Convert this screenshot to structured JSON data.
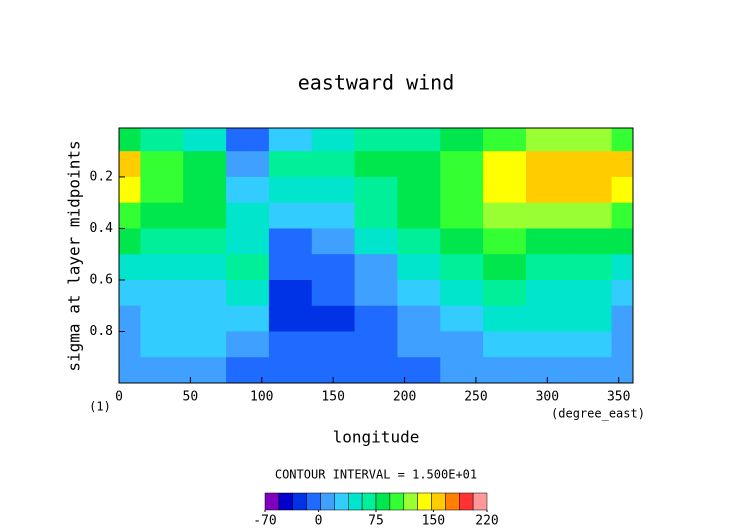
{
  "chart_data": {
    "type": "contourf",
    "title": "eastward wind",
    "x_label": "longitude",
    "y_label": "sigma at layer midpoints",
    "x_units": "(degree_east)",
    "y_units": "(1)",
    "note": "CONTOUR INTERVAL = 1.500E+01",
    "xlim": [
      0,
      360
    ],
    "ylim": [
      0.01,
      1.0
    ],
    "y_inverted": true,
    "xticks": [
      0,
      50,
      100,
      150,
      200,
      250,
      300,
      350
    ],
    "yticks": [
      0.2,
      0.4,
      0.6,
      0.8
    ],
    "x": [
      0,
      30,
      60,
      90,
      120,
      150,
      180,
      210,
      240,
      270,
      300,
      330,
      360
    ],
    "y": [
      0.05,
      0.15,
      0.25,
      0.35,
      0.45,
      0.55,
      0.65,
      0.75,
      0.85,
      0.95
    ],
    "z": [
      [
        90,
        60,
        45,
        -15,
        30,
        45,
        60,
        60,
        75,
        105,
        120,
        120,
        105
      ],
      [
        150,
        105,
        75,
        15,
        60,
        60,
        75,
        90,
        105,
        140,
        160,
        160,
        150
      ],
      [
        140,
        100,
        80,
        30,
        45,
        50,
        70,
        85,
        105,
        135,
        155,
        150,
        145
      ],
      [
        110,
        90,
        75,
        45,
        30,
        35,
        60,
        80,
        100,
        115,
        120,
        115,
        110
      ],
      [
        80,
        70,
        60,
        50,
        0,
        15,
        40,
        60,
        80,
        95,
        90,
        85,
        80
      ],
      [
        55,
        45,
        40,
        60,
        -15,
        0,
        20,
        40,
        60,
        75,
        70,
        65,
        55
      ],
      [
        35,
        35,
        30,
        45,
        -30,
        -5,
        10,
        25,
        45,
        60,
        55,
        50,
        35
      ],
      [
        20,
        30,
        25,
        30,
        -30,
        -20,
        -10,
        10,
        30,
        45,
        45,
        40,
        20
      ],
      [
        10,
        25,
        30,
        10,
        -15,
        -15,
        -5,
        5,
        20,
        30,
        30,
        25,
        10
      ],
      [
        5,
        10,
        10,
        0,
        -5,
        -5,
        0,
        0,
        10,
        20,
        20,
        15,
        5
      ]
    ],
    "clim": [
      -70,
      220
    ],
    "cticks": [
      -70,
      0,
      75,
      150,
      220
    ],
    "colors": [
      "#7f00bf",
      "#0000cc",
      "#0033e6",
      "#1f6bff",
      "#3fa0ff",
      "#33ccff",
      "#00e5cc",
      "#00f099",
      "#00e64d",
      "#33ff33",
      "#99ff33",
      "#ffff00",
      "#ffcc00",
      "#ff7f00",
      "#ff3333",
      "#ff9999"
    ]
  }
}
